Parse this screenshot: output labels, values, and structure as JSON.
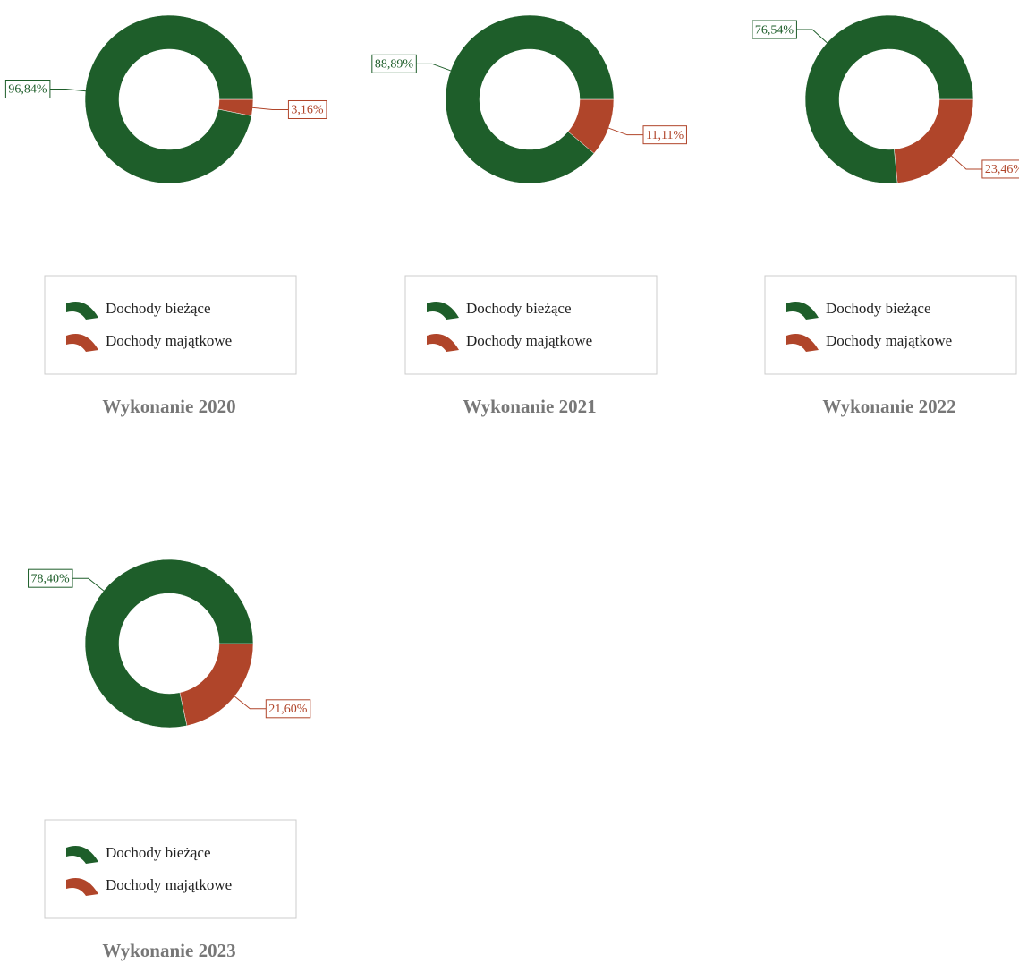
{
  "chart_data": [
    {
      "type": "pie",
      "donut": true,
      "title": "Wykonanie 2020",
      "categories": [
        "Dochody bieżące",
        "Dochody majątkowe"
      ],
      "values": [
        96.84,
        3.16
      ],
      "value_labels": [
        "96,84%",
        "3,16%"
      ],
      "colors": [
        "#1e5e2a",
        "#b0452a"
      ]
    },
    {
      "type": "pie",
      "donut": true,
      "title": "Wykonanie 2021",
      "categories": [
        "Dochody bieżące",
        "Dochody majątkowe"
      ],
      "values": [
        88.89,
        11.11
      ],
      "value_labels": [
        "88,89%",
        "11,11%"
      ],
      "colors": [
        "#1e5e2a",
        "#b0452a"
      ]
    },
    {
      "type": "pie",
      "donut": true,
      "title": "Wykonanie 2022",
      "categories": [
        "Dochody bieżące",
        "Dochody majątkowe"
      ],
      "values": [
        76.54,
        23.46
      ],
      "value_labels": [
        "76,54%",
        "23,46%"
      ],
      "colors": [
        "#1e5e2a",
        "#b0452a"
      ]
    },
    {
      "type": "pie",
      "donut": true,
      "title": "Wykonanie 2023",
      "categories": [
        "Dochody bieżące",
        "Dochody majątkowe"
      ],
      "values": [
        78.4,
        21.6
      ],
      "value_labels": [
        "78,40%",
        "21,60%"
      ],
      "colors": [
        "#1e5e2a",
        "#b0452a"
      ]
    }
  ]
}
